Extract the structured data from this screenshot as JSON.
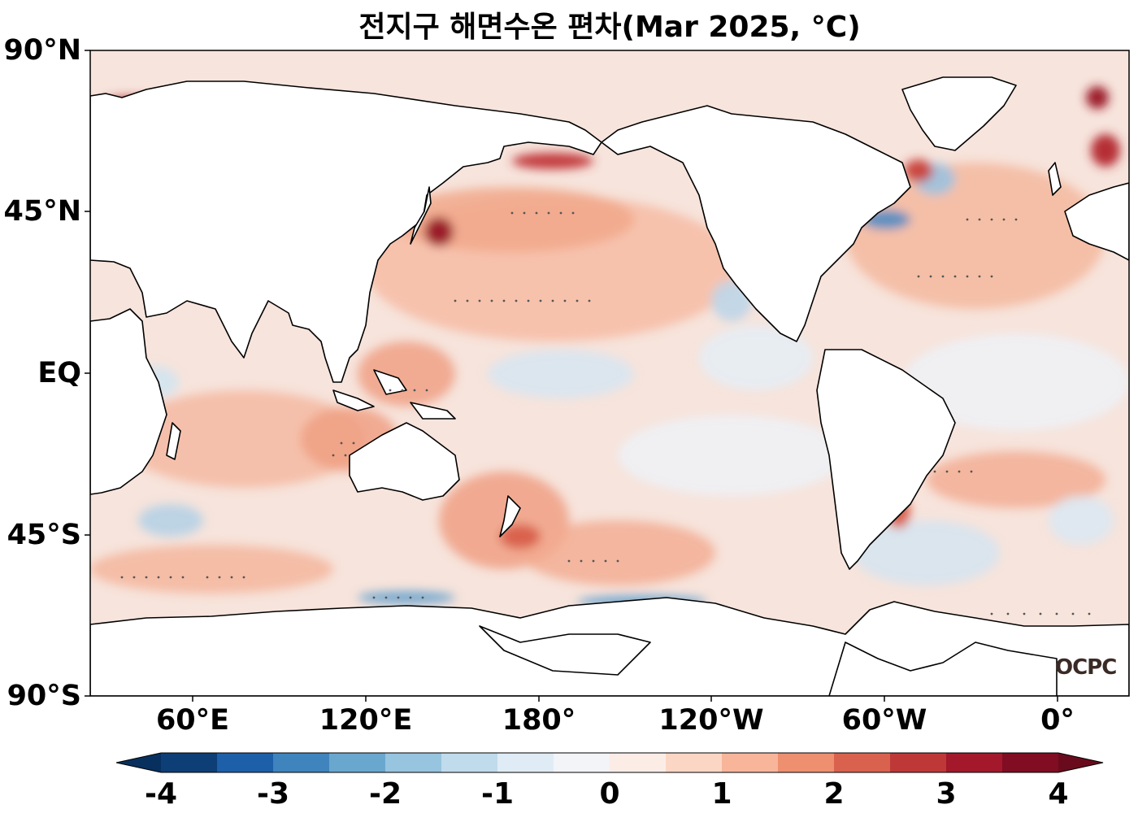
{
  "title": "전지구 해면수온 편차(Mar 2025, °C)",
  "logo": "OCPC",
  "lat_labels": [
    "90°N",
    "45°N",
    "EQ",
    "45°S",
    "90°S"
  ],
  "lon_labels": [
    "60°E",
    "120°E",
    "180°",
    "120°W",
    "60°W",
    "0°"
  ],
  "colorbar": {
    "ticks": [
      "-4",
      "-3",
      "-2",
      "-1",
      "0",
      "1",
      "2",
      "3",
      "4"
    ],
    "colors": [
      "#0d3e76",
      "#1d5fa8",
      "#3f84bd",
      "#6aa7cf",
      "#97c4df",
      "#c0dbeb",
      "#e0ecf5",
      "#f2f4f7",
      "#fbece6",
      "#fcd6c5",
      "#f8b59a",
      "#ee8f6f",
      "#d9624e",
      "#bf3838",
      "#a3182b",
      "#800d22"
    ],
    "extend_low_color": "#07305f",
    "extend_high_color": "#6a0b1d"
  },
  "map": {
    "ocean_base_color": "#f7e6e0",
    "land_color": "#ffffff",
    "coast_color": "#000000"
  }
}
